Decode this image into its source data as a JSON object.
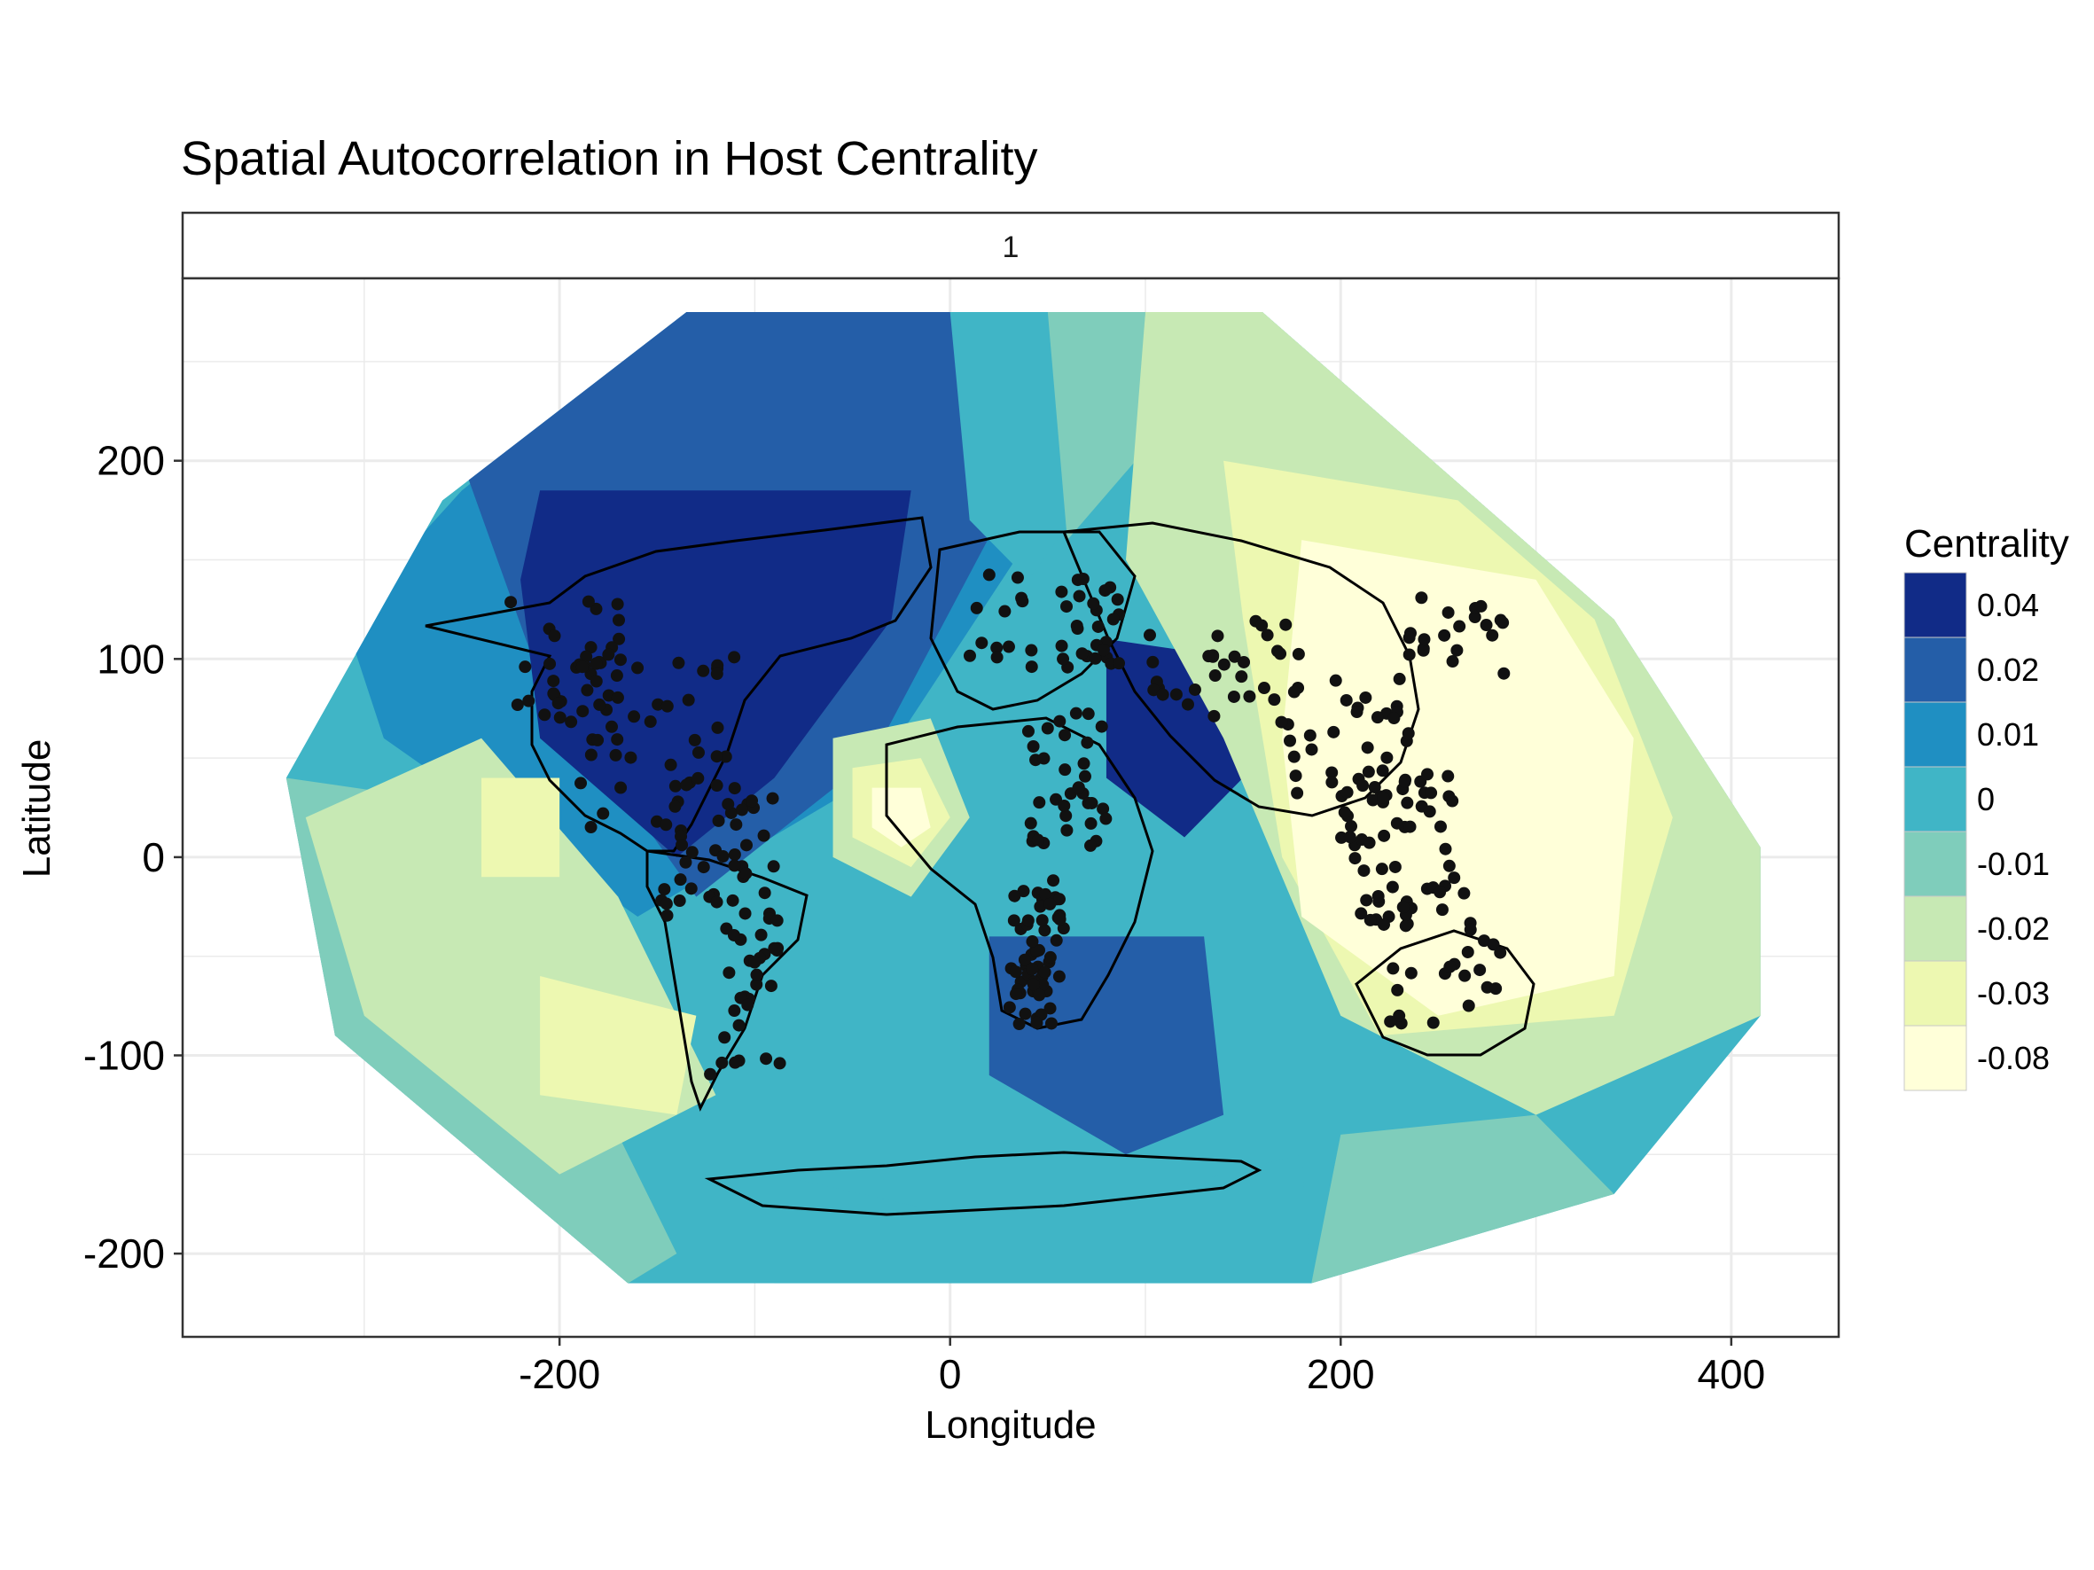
{
  "title": "Spatial Autocorrelation in Host Centrality",
  "facet_label": "1",
  "x_axis": {
    "label": "Longitude",
    "ticks": [
      -200,
      0,
      200,
      400
    ],
    "tick_labels": [
      "-200",
      "0",
      "200",
      "400"
    ]
  },
  "y_axis": {
    "label": "Latitude",
    "ticks": [
      200,
      100,
      0,
      -100,
      -200
    ],
    "tick_labels": [
      "200",
      "100",
      "0",
      "-100",
      "-200"
    ]
  },
  "legend": {
    "title": "Centrality",
    "entries": [
      {
        "label": "0.04",
        "color": "#112b87"
      },
      {
        "label": "0.02",
        "color": "#245ea8"
      },
      {
        "label": "0.01",
        "color": "#1f8fc2"
      },
      {
        "label": "0",
        "color": "#40b5c6"
      },
      {
        "label": "-0.01",
        "color": "#7fcdbb"
      },
      {
        "label": "-0.02",
        "color": "#c7e9b4"
      },
      {
        "label": "-0.03",
        "color": "#edf8b1"
      },
      {
        "label": "-0.08",
        "color": "#ffffd9"
      }
    ]
  },
  "chart_data": {
    "type": "heatmap",
    "title": "Spatial Autocorrelation in Host Centrality",
    "xlabel": "Longitude",
    "ylabel": "Latitude",
    "xlim": [
      -393,
      455
    ],
    "ylim": [
      -242,
      292
    ],
    "grid": true,
    "facet": "1",
    "legend_title": "Centrality",
    "legend_position": "right",
    "levels": [
      "0.04",
      "0.02",
      "0.01",
      "0",
      "-0.01",
      "-0.02",
      "-0.03",
      "-0.08"
    ],
    "domain_outline": [
      [
        -135,
        275
      ],
      [
        160,
        275
      ],
      [
        340,
        120
      ],
      [
        415,
        5
      ],
      [
        415,
        -80
      ],
      [
        340,
        -170
      ],
      [
        185,
        -215
      ],
      [
        -165,
        -215
      ],
      [
        -315,
        -90
      ],
      [
        -340,
        40
      ],
      [
        -260,
        180
      ]
    ],
    "regions": [
      {
        "level": "0.01",
        "polygon": [
          [
            -135,
            275
          ],
          [
            60,
            275
          ],
          [
            40,
            160
          ],
          [
            -40,
            40
          ],
          [
            -160,
            -30
          ],
          [
            -290,
            60
          ],
          [
            -310,
            120
          ],
          [
            -250,
            185
          ]
        ]
      },
      {
        "level": "0.02",
        "polygon": [
          [
            -245,
            275
          ],
          [
            0,
            275
          ],
          [
            30,
            180
          ],
          [
            -40,
            50
          ],
          [
            -130,
            -20
          ],
          [
            -210,
            90
          ],
          [
            -250,
            200
          ]
        ]
      },
      {
        "level": "0.04",
        "polygon": [
          [
            -210,
            185
          ],
          [
            -20,
            185
          ],
          [
            -30,
            120
          ],
          [
            -90,
            40
          ],
          [
            -140,
            0
          ],
          [
            -210,
            60
          ],
          [
            -220,
            140
          ]
        ]
      },
      {
        "level": "0.04",
        "polygon": [
          [
            80,
            110
          ],
          [
            150,
            100
          ],
          [
            160,
            50
          ],
          [
            120,
            10
          ],
          [
            80,
            40
          ]
        ]
      },
      {
        "level": "0.02",
        "polygon": [
          [
            20,
            -40
          ],
          [
            130,
            -40
          ],
          [
            140,
            -130
          ],
          [
            90,
            -150
          ],
          [
            20,
            -110
          ]
        ]
      },
      {
        "level": "0",
        "polygon": [
          [
            0,
            275
          ],
          [
            50,
            275
          ],
          [
            70,
            180
          ],
          [
            40,
            140
          ],
          [
            10,
            170
          ]
        ]
      },
      {
        "level": "-0.01",
        "polygon": [
          [
            50,
            275
          ],
          [
            100,
            275
          ],
          [
            95,
            200
          ],
          [
            60,
            160
          ]
        ]
      },
      {
        "level": "-0.02",
        "polygon": [
          [
            100,
            275
          ],
          [
            160,
            275
          ],
          [
            340,
            120
          ],
          [
            415,
            5
          ],
          [
            415,
            -80
          ],
          [
            300,
            -130
          ],
          [
            200,
            -80
          ],
          [
            140,
            60
          ],
          [
            90,
            150
          ]
        ]
      },
      {
        "level": "-0.03",
        "polygon": [
          [
            140,
            200
          ],
          [
            260,
            180
          ],
          [
            330,
            120
          ],
          [
            370,
            20
          ],
          [
            340,
            -80
          ],
          [
            220,
            -90
          ],
          [
            170,
            0
          ],
          [
            150,
            120
          ]
        ]
      },
      {
        "level": "-0.08",
        "polygon": [
          [
            180,
            160
          ],
          [
            300,
            140
          ],
          [
            350,
            60
          ],
          [
            340,
            -60
          ],
          [
            250,
            -80
          ],
          [
            180,
            -30
          ],
          [
            170,
            60
          ]
        ]
      },
      {
        "level": "-0.01",
        "polygon": [
          [
            -315,
            -90
          ],
          [
            -340,
            40
          ],
          [
            -270,
            30
          ],
          [
            -200,
            -80
          ],
          [
            -140,
            -200
          ],
          [
            -165,
            -215
          ]
        ]
      },
      {
        "level": "-0.02",
        "polygon": [
          [
            -330,
            20
          ],
          [
            -240,
            60
          ],
          [
            -170,
            -20
          ],
          [
            -120,
            -120
          ],
          [
            -200,
            -160
          ],
          [
            -300,
            -80
          ]
        ]
      },
      {
        "level": "-0.03",
        "polygon": [
          [
            -240,
            40
          ],
          [
            -200,
            40
          ],
          [
            -200,
            -10
          ],
          [
            -240,
            -10
          ]
        ]
      },
      {
        "level": "-0.03",
        "polygon": [
          [
            -210,
            -60
          ],
          [
            -130,
            -80
          ],
          [
            -140,
            -130
          ],
          [
            -210,
            -120
          ]
        ]
      },
      {
        "level": "0",
        "polygon": [
          [
            -90,
            -215
          ],
          [
            185,
            -215
          ],
          [
            180,
            -150
          ],
          [
            100,
            -170
          ],
          [
            0,
            -180
          ],
          [
            -90,
            -160
          ]
        ]
      },
      {
        "level": "-0.02",
        "polygon": [
          [
            -60,
            60
          ],
          [
            -10,
            70
          ],
          [
            10,
            20
          ],
          [
            -20,
            -20
          ],
          [
            -60,
            0
          ]
        ]
      },
      {
        "level": "-0.03",
        "polygon": [
          [
            -50,
            45
          ],
          [
            -15,
            50
          ],
          [
            0,
            20
          ],
          [
            -20,
            -5
          ],
          [
            -50,
            10
          ]
        ]
      },
      {
        "level": "-0.08",
        "polygon": [
          [
            -40,
            35
          ],
          [
            -15,
            35
          ],
          [
            -10,
            15
          ],
          [
            -25,
            5
          ],
          [
            -40,
            15
          ]
        ]
      },
      {
        "level": "-0.01",
        "polygon": [
          [
            185,
            -215
          ],
          [
            340,
            -170
          ],
          [
            300,
            -130
          ],
          [
            200,
            -140
          ]
        ]
      }
    ],
    "host_points_description": "Black point markers for host locations concentrated over the Americas, Europe, Africa, South and East Asia, and Australia."
  }
}
